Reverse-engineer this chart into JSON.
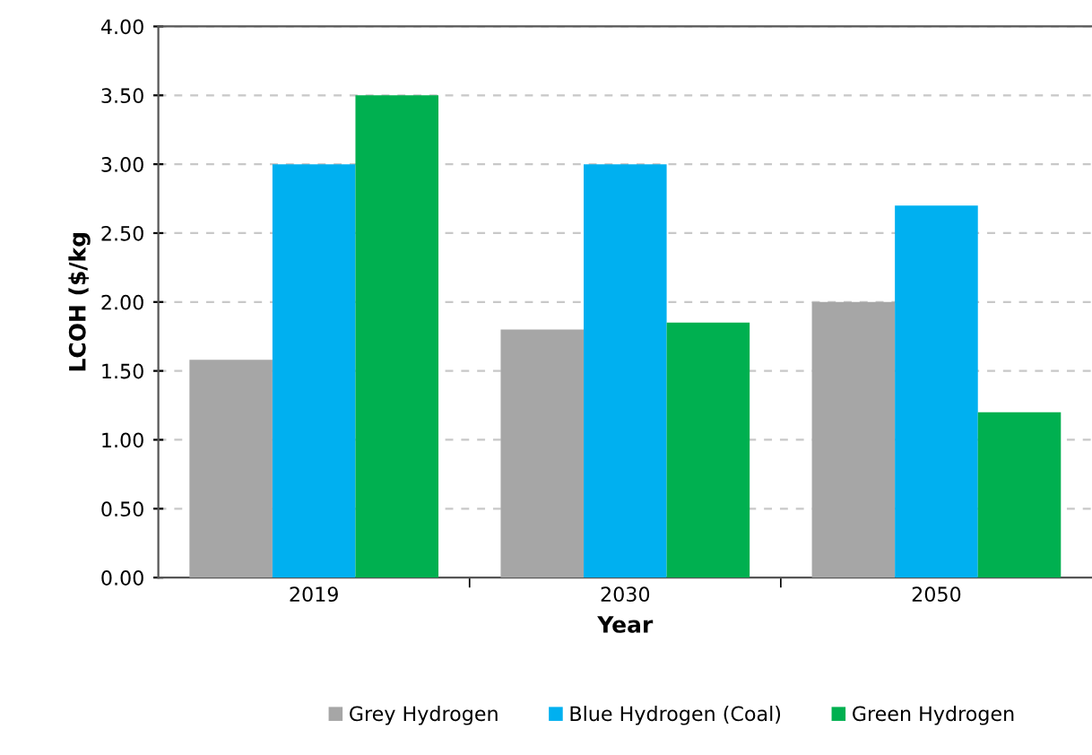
{
  "chart_data": {
    "type": "bar",
    "xlabel": "Year",
    "ylabel": "LCOH ($/kg",
    "categories": [
      "2019",
      "2030",
      "2050"
    ],
    "series": [
      {
        "name": "Grey Hydrogen",
        "color": "#a6a6a6",
        "values": [
          1.58,
          1.8,
          2.0
        ]
      },
      {
        "name": "Blue Hydrogen (Coal)",
        "color": "#00b0f0",
        "values": [
          3.0,
          3.0,
          2.7
        ]
      },
      {
        "name": "Green Hydrogen",
        "color": "#00b050",
        "values": [
          3.5,
          1.85,
          1.2
        ]
      }
    ],
    "ylim": [
      0,
      4
    ],
    "yticks": [
      {
        "value": 0,
        "label": "0.00"
      },
      {
        "value": 0.5,
        "label": "0.50"
      },
      {
        "value": 1,
        "label": "1.00"
      },
      {
        "value": 1.5,
        "label": "1.50"
      },
      {
        "value": 2,
        "label": "2.00"
      },
      {
        "value": 2.5,
        "label": "2.50"
      },
      {
        "value": 3,
        "label": "3.00"
      },
      {
        "value": 3.5,
        "label": "3.50"
      },
      {
        "value": 4,
        "label": "4.00"
      }
    ],
    "grid": "y",
    "legend": "bottom"
  }
}
